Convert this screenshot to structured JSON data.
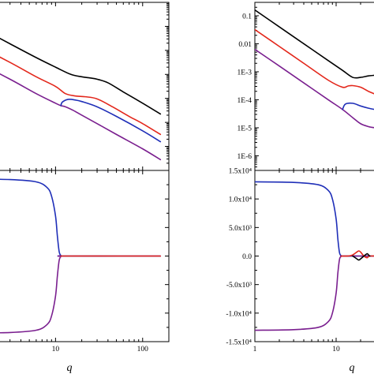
{
  "colors": {
    "black": "#000000",
    "red": "#e3271b",
    "blue": "#1f2fb8",
    "purple": "#7a1f8f"
  },
  "axis_title_q": "q",
  "chart_data": [
    {
      "panel": "top-left",
      "type": "line",
      "xscale": "log",
      "yscale": "log",
      "xlim": [
        1,
        200
      ],
      "ylim": [
        1e-07,
        1
      ],
      "xticks": [
        1,
        10,
        100
      ],
      "xtick_labels": [],
      "ytick_labels": [],
      "series": [
        {
          "color": "black",
          "x": [
            1,
            3,
            6,
            10,
            15,
            20,
            25,
            30,
            40,
            60,
            100,
            160
          ],
          "y": [
            0.1585,
            0.01884,
            0.00501,
            0.002,
            0.001,
            0.000794,
            0.000708,
            0.00063,
            0.000447,
            0.000186,
            6.31e-05,
            2.24e-05
          ]
        },
        {
          "color": "red",
          "x": [
            1,
            3,
            6,
            10,
            13,
            17,
            22,
            30,
            45,
            70,
            100,
            160
          ],
          "y": [
            0.0251,
            0.00316,
            0.000794,
            0.000316,
            0.000158,
            0.000126,
            0.000117,
            9.55e-05,
            4.47e-05,
            1.78e-05,
            8.91e-06,
            3.16e-06
          ]
        },
        {
          "color": "purple",
          "x": [
            1,
            3,
            6,
            10,
            11.5,
            13,
            16,
            20,
            30,
            50,
            100,
            160
          ],
          "y": [
            0.00501,
            0.000631,
            0.000158,
            6.31e-05,
            5.01e-05,
            4.47e-05,
            3.16e-05,
            2e-05,
            8.91e-06,
            3.16e-06,
            7.94e-07,
            2.82e-07
          ]
        },
        {
          "color": "blue",
          "x": [
            11.5,
            12,
            14,
            17,
            20,
            30,
            50,
            100,
            160
          ],
          "y": [
            5.01e-05,
            7.08e-05,
            9.12e-05,
            8.51e-05,
            7.41e-05,
            4.47e-05,
            1.78e-05,
            4.47e-06,
            1.58e-06
          ]
        }
      ]
    },
    {
      "panel": "top-right",
      "type": "line",
      "xscale": "log",
      "yscale": "log",
      "xlim": [
        1,
        200
      ],
      "ylim": [
        3e-07,
        0.3
      ],
      "xticks": [
        1,
        10,
        100
      ],
      "yticks": [
        0.1,
        0.01,
        0.001,
        0.0001,
        1e-05,
        1e-06
      ],
      "xtick_labels": [],
      "ytick_labels": [
        "0.1",
        "0.01",
        "1E-3",
        "1E-4",
        "1E-5",
        "1E-6"
      ],
      "series": [
        {
          "color": "black",
          "x": [
            1,
            2,
            4,
            8,
            12,
            16,
            20,
            25,
            30
          ],
          "y": [
            0.16,
            0.04,
            0.01,
            0.0025,
            0.00112,
            0.00063,
            0.00063,
            0.00071,
            0.00075
          ]
        },
        {
          "color": "red",
          "x": [
            1,
            2,
            4,
            8,
            12,
            14,
            16,
            20,
            25,
            30
          ],
          "y": [
            0.032,
            0.008,
            0.002,
            0.0005,
            0.00028,
            0.00031,
            0.00032,
            0.00028,
            0.0002,
            0.00016
          ]
        },
        {
          "color": "purple",
          "x": [
            1,
            2,
            4,
            8,
            12,
            16,
            20,
            25,
            30
          ],
          "y": [
            0.0063,
            0.0016,
            0.0004,
            0.0001,
            4.5e-05,
            2.3e-05,
            1.4e-05,
            1.1e-05,
            1e-05
          ]
        },
        {
          "color": "blue",
          "x": [
            12,
            13,
            16,
            20,
            25,
            30
          ],
          "y": [
            4.5e-05,
            7e-05,
            7.5e-05,
            6e-05,
            5e-05,
            4.5e-05
          ]
        }
      ]
    },
    {
      "panel": "bottom-left",
      "type": "line",
      "xscale": "log",
      "yscale": "linear",
      "xlim": [
        1,
        200
      ],
      "ylim": [
        -15000,
        15000
      ],
      "xticks": [
        1,
        10,
        100
      ],
      "xtick_labels": [
        "10",
        "100"
      ],
      "ytick_labels": [],
      "series": [
        {
          "color": "blue",
          "x": [
            1,
            3,
            6,
            8,
            9,
            10,
            10.5,
            11,
            11.5,
            12,
            50,
            160
          ],
          "y": [
            13500,
            13400,
            13000,
            12000,
            10500,
            7000,
            3500,
            800,
            100,
            0,
            0,
            0
          ]
        },
        {
          "color": "purple",
          "x": [
            1,
            3,
            6,
            8,
            9,
            10,
            10.5,
            11,
            11.5,
            12,
            50,
            160
          ],
          "y": [
            -13500,
            -13400,
            -13000,
            -12000,
            -10500,
            -7000,
            -3500,
            -800,
            -100,
            0,
            0,
            0
          ]
        },
        {
          "color": "red",
          "x": [
            11.5,
            50,
            160
          ],
          "y": [
            0,
            0,
            0
          ]
        }
      ]
    },
    {
      "panel": "bottom-right",
      "type": "line",
      "xscale": "log",
      "yscale": "linear",
      "xlim": [
        1,
        200
      ],
      "ylim": [
        -15000,
        15000
      ],
      "xticks": [
        1,
        10,
        100
      ],
      "yticks": [
        15000,
        10000,
        5000,
        0,
        -5000,
        -10000,
        -15000
      ],
      "xtick_labels": [
        "1",
        "10"
      ],
      "ytick_labels": [
        "1.5x10⁴",
        "1.0x10⁴",
        "5.0x10³",
        "0.0",
        "-5.0x10³",
        "-1.0x10⁴",
        "-1.5x10⁴"
      ],
      "series": [
        {
          "color": "blue",
          "x": [
            1,
            3,
            6,
            8,
            9,
            10,
            10.5,
            11,
            11.5,
            12,
            20,
            30
          ],
          "y": [
            13000,
            12900,
            12500,
            11500,
            10000,
            6500,
            3000,
            600,
            80,
            0,
            0,
            0
          ]
        },
        {
          "color": "purple",
          "x": [
            1,
            3,
            6,
            8,
            9,
            10,
            10.5,
            11,
            11.5,
            12,
            20,
            30
          ],
          "y": [
            -13000,
            -12900,
            -12500,
            -11500,
            -10000,
            -6500,
            -3000,
            -600,
            -80,
            0,
            0,
            0
          ]
        },
        {
          "color": "red",
          "x": [
            11.5,
            14,
            16,
            18,
            19,
            20,
            22,
            24,
            25,
            26,
            30
          ],
          "y": [
            0,
            0,
            200,
            700,
            900,
            700,
            0,
            -300,
            -100,
            0,
            0
          ]
        },
        {
          "color": "black",
          "x": [
            16,
            18,
            19,
            20,
            22,
            24,
            25,
            26
          ],
          "y": [
            0,
            -500,
            -700,
            -500,
            0,
            400,
            200,
            0
          ]
        }
      ]
    }
  ]
}
